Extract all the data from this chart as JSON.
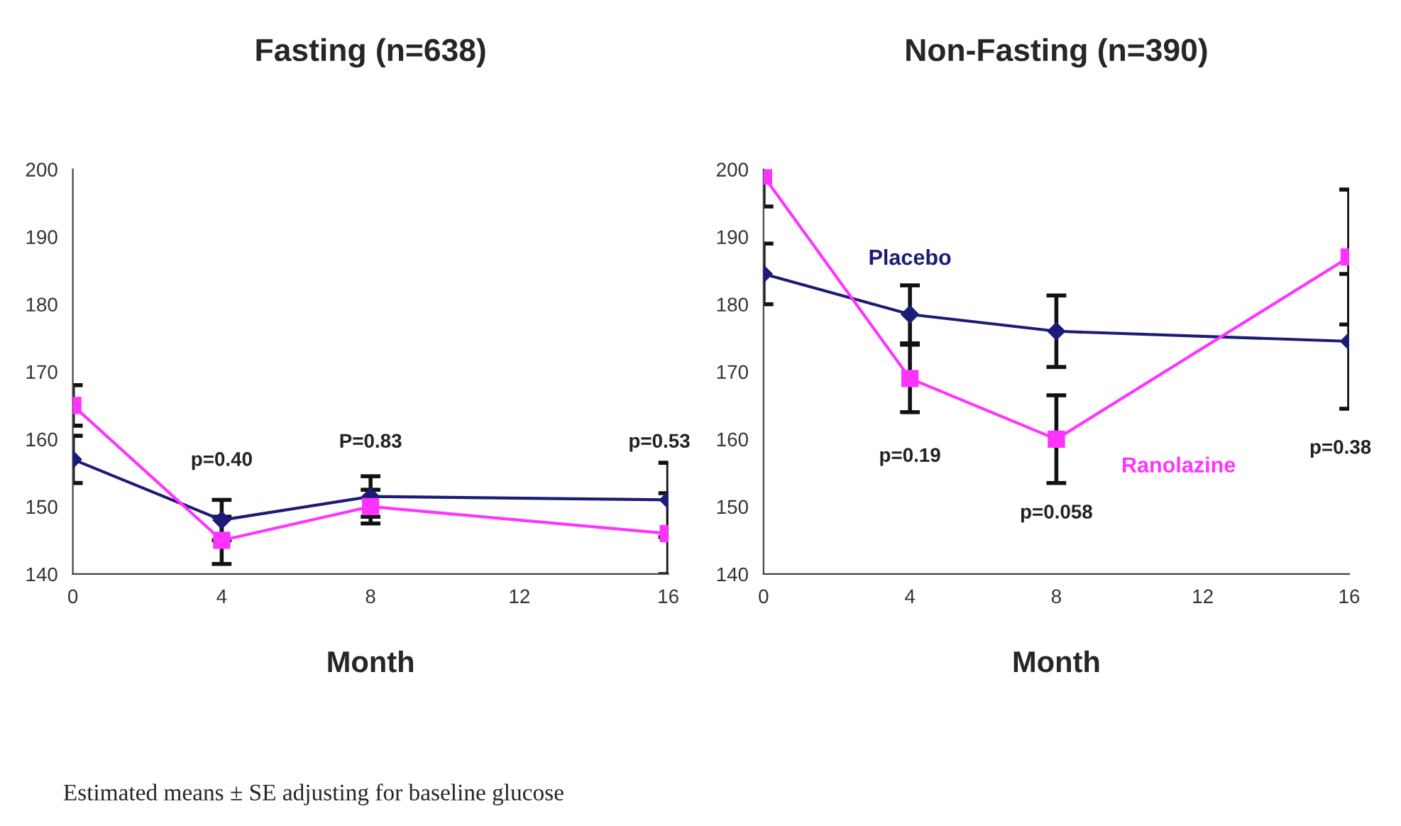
{
  "chart_data": [
    {
      "type": "line",
      "title": "Fasting (n=638)",
      "xlabel": "Month",
      "x": [
        0,
        4,
        8,
        16
      ],
      "xlim": [
        0,
        16
      ],
      "xticks": [
        0,
        4,
        8,
        12,
        16
      ],
      "ylim": [
        140,
        200
      ],
      "yticks": [
        140,
        150,
        160,
        170,
        180,
        190,
        200
      ],
      "grid": false,
      "legend": false,
      "series": [
        {
          "color": "#1c1c78",
          "marker": "diamond",
          "values": [
            157,
            148,
            151.5,
            151
          ],
          "errors": [
            3.5,
            3,
            3,
            5.5
          ]
        },
        {
          "color": "#ff33ff",
          "marker": "square",
          "values": [
            165,
            145,
            150,
            146
          ],
          "errors": [
            3,
            3.5,
            2.5,
            6
          ]
        }
      ],
      "annotations": [
        "p=0.40",
        "P=0.83",
        "p=0.53",
        "Estimated means ± SE adjusting for baseline glucose"
      ]
    },
    {
      "type": "line",
      "title": "Non-Fasting (n=390)",
      "xlabel": "Month",
      "x": [
        0,
        4,
        8,
        16
      ],
      "xlim": [
        0,
        16
      ],
      "xticks": [
        0,
        4,
        8,
        12,
        16
      ],
      "ylim": [
        140,
        200
      ],
      "yticks": [
        140,
        150,
        160,
        170,
        180,
        190,
        200
      ],
      "grid": false,
      "legend": false,
      "series": [
        {
          "name": "Placebo",
          "color": "#1c1c78",
          "marker": "diamond",
          "values": [
            184.5,
            178.5,
            176,
            174.5
          ],
          "errors": [
            4.5,
            4.3,
            5.3,
            10
          ]
        },
        {
          "name": "Ranolazine",
          "color": "#ff33ff",
          "marker": "square",
          "values": [
            199,
            169,
            160,
            187
          ],
          "errors": [
            4.5,
            5,
            6.5,
            10
          ]
        }
      ],
      "annotations": [
        "p=0.19",
        "p=0.058",
        "p=0.38"
      ]
    }
  ]
}
